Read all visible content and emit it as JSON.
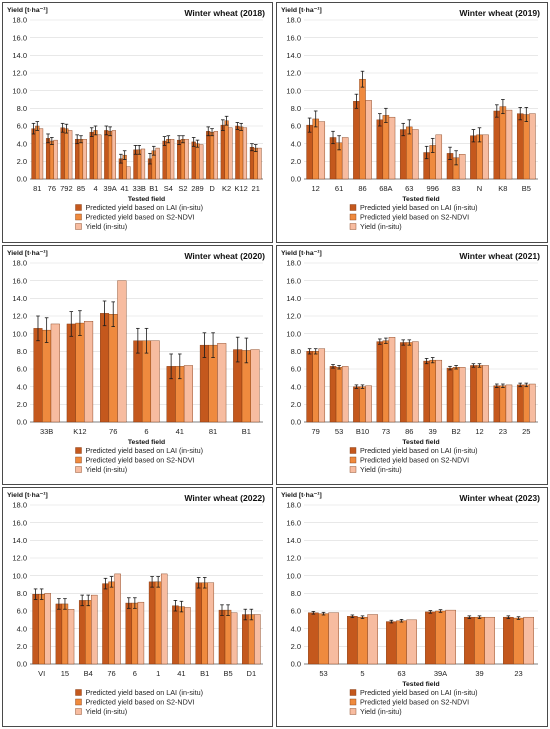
{
  "legend": {
    "lai": "Predicted yield based on LAI (in-situ)",
    "ndvi": "Predicted yield based on S2-NDVI",
    "insitu": "Yield (in-situ)"
  },
  "colors": {
    "lai": "#c4581d",
    "ndvi": "#ef8a3e",
    "insitu": "#f7bca0",
    "bar_stroke": "#7a3510"
  },
  "chart_data": [
    {
      "type": "bar",
      "title": "Winter wheat (2018)",
      "ylabel": "Yield [t·ha⁻¹]",
      "xlabel": "Tested field",
      "ylim": [
        0,
        18
      ],
      "yticks": [
        "0.0",
        "2.0",
        "4.0",
        "6.0",
        "8.0",
        "10.0",
        "12.0",
        "14.0",
        "16.0",
        "18.0"
      ],
      "grid": true,
      "legend_position": "bottom",
      "categories": [
        "81",
        "76",
        "792",
        "85",
        "4",
        "39A",
        "41",
        "33B",
        "B1",
        "S4",
        "S2",
        "289",
        "D",
        "K2",
        "K12",
        "21"
      ],
      "series": [
        {
          "name": "Predicted yield based on LAI (in-situ)",
          "values": [
            5.7,
            4.6,
            5.8,
            4.5,
            5.3,
            5.5,
            2.3,
            3.3,
            2.3,
            4.3,
            4.4,
            4.2,
            5.4,
            6.1,
            6.0,
            3.6
          ],
          "errors": [
            0.6,
            0.5,
            0.5,
            0.5,
            0.5,
            0.5,
            0.5,
            0.5,
            0.6,
            0.5,
            0.5,
            0.5,
            0.5,
            0.6,
            0.4,
            0.4
          ]
        },
        {
          "name": "Predicted yield based on S2-NDVI",
          "values": [
            6.0,
            4.3,
            5.7,
            4.5,
            5.5,
            5.4,
            2.7,
            3.3,
            3.2,
            4.5,
            4.5,
            4.0,
            5.3,
            6.6,
            5.9,
            3.5
          ],
          "errors": [
            0.5,
            0.4,
            0.5,
            0.4,
            0.5,
            0.5,
            0.5,
            0.5,
            0.5,
            0.4,
            0.4,
            0.4,
            0.4,
            0.5,
            0.4,
            0.4
          ]
        },
        {
          "name": "Yield (in-situ)",
          "values": [
            5.7,
            4.4,
            5.5,
            4.5,
            5.0,
            5.5,
            1.4,
            3.4,
            3.5,
            4.5,
            4.5,
            3.9,
            5.4,
            5.8,
            5.8,
            3.5
          ]
        }
      ]
    },
    {
      "type": "bar",
      "title": "Winter wheat (2019)",
      "ylabel": "Yield [t·ha⁻¹]",
      "xlabel": "Tested field",
      "ylim": [
        0,
        18
      ],
      "yticks": [
        "0.0",
        "2.0",
        "4.0",
        "6.0",
        "8.0",
        "10.0",
        "12.0",
        "14.0",
        "16.0",
        "18.0"
      ],
      "grid": true,
      "legend_position": "bottom",
      "categories": [
        "12",
        "61",
        "86",
        "68A",
        "63",
        "996",
        "83",
        "N",
        "K8",
        "B5"
      ],
      "series": [
        {
          "name": "Predicted yield based on LAI (in-situ)",
          "values": [
            6.1,
            4.7,
            8.8,
            6.7,
            5.6,
            3.0,
            2.9,
            4.9,
            7.7,
            7.4
          ],
          "errors": [
            0.8,
            0.7,
            0.8,
            0.7,
            0.7,
            0.7,
            0.7,
            0.7,
            0.7,
            0.7
          ]
        },
        {
          "name": "Predicted yield based on S2-NDVI",
          "values": [
            6.8,
            4.1,
            11.3,
            7.2,
            5.9,
            3.8,
            2.4,
            5.0,
            8.2,
            7.3
          ],
          "errors": [
            0.9,
            0.8,
            0.9,
            0.8,
            0.8,
            0.8,
            0.8,
            0.8,
            0.8,
            0.8
          ]
        },
        {
          "name": "Yield (in-situ)",
          "values": [
            6.5,
            4.7,
            8.9,
            7.0,
            5.6,
            5.0,
            2.8,
            5.0,
            7.8,
            7.4
          ]
        }
      ]
    },
    {
      "type": "bar",
      "title": "Winter wheat (2020)",
      "ylabel": "Yield [t·ha⁻¹]",
      "xlabel": "Tested field",
      "ylim": [
        0,
        18
      ],
      "yticks": [
        "0.0",
        "2.0",
        "4.0",
        "6.0",
        "8.0",
        "10.0",
        "12.0",
        "14.0",
        "16.0",
        "18.0"
      ],
      "grid": true,
      "legend_position": "bottom",
      "categories": [
        "33B",
        "K12",
        "76",
        "6",
        "41",
        "81",
        "B1"
      ],
      "series": [
        {
          "name": "Predicted yield based on LAI (in-situ)",
          "values": [
            10.6,
            11.1,
            12.3,
            9.2,
            6.3,
            8.7,
            8.2
          ],
          "errors": [
            1.4,
            1.4,
            1.4,
            1.4,
            1.4,
            1.4,
            1.4
          ]
        },
        {
          "name": "Predicted yield based on S2-NDVI",
          "values": [
            10.4,
            11.2,
            12.2,
            9.2,
            6.3,
            8.7,
            8.1
          ],
          "errors": [
            1.4,
            1.4,
            1.4,
            1.4,
            1.4,
            1.4,
            1.4
          ]
        },
        {
          "name": "Yield (in-situ)",
          "values": [
            11.1,
            11.4,
            16.0,
            9.2,
            6.4,
            8.9,
            8.2
          ]
        }
      ]
    },
    {
      "type": "bar",
      "title": "Winter wheat (2021)",
      "ylabel": "Yield [t·ha⁻¹]",
      "xlabel": "Tested field",
      "ylim": [
        0,
        18
      ],
      "yticks": [
        "0.0",
        "2.0",
        "4.0",
        "6.0",
        "8.0",
        "10.0",
        "12.0",
        "14.0",
        "16.0",
        "18.0"
      ],
      "grid": true,
      "legend_position": "bottom",
      "categories": [
        "79",
        "53",
        "B10",
        "73",
        "86",
        "39",
        "B2",
        "12",
        "23",
        "25"
      ],
      "series": [
        {
          "name": "Predicted yield based on LAI (in-situ)",
          "values": [
            8.0,
            6.3,
            4.0,
            9.1,
            9.0,
            6.9,
            6.1,
            6.4,
            4.1,
            4.2
          ],
          "errors": [
            0.3,
            0.2,
            0.2,
            0.3,
            0.3,
            0.3,
            0.2,
            0.2,
            0.2,
            0.2
          ]
        },
        {
          "name": "Predicted yield based on S2-NDVI",
          "values": [
            8.0,
            6.2,
            4.0,
            9.2,
            9.0,
            7.0,
            6.2,
            6.4,
            4.1,
            4.2
          ],
          "errors": [
            0.3,
            0.2,
            0.2,
            0.3,
            0.3,
            0.3,
            0.2,
            0.2,
            0.2,
            0.2
          ]
        },
        {
          "name": "Yield (in-situ)",
          "values": [
            8.3,
            6.3,
            4.1,
            9.6,
            9.1,
            7.0,
            6.2,
            6.4,
            4.2,
            4.3
          ]
        }
      ]
    },
    {
      "type": "bar",
      "title": "Winter wheat (2022)",
      "ylabel": "Yield [t·ha⁻¹]",
      "xlabel": "",
      "ylim": [
        0,
        18
      ],
      "yticks": [
        "0.0",
        "2.0",
        "4.0",
        "6.0",
        "8.0",
        "10.0",
        "12.0",
        "14.0",
        "16.0",
        "18.0"
      ],
      "grid": true,
      "legend_position": "bottom",
      "categories": [
        "VI",
        "15",
        "B4",
        "76",
        "6",
        "1",
        "41",
        "B1",
        "B5",
        "D1"
      ],
      "series": [
        {
          "name": "Predicted yield based on LAI (in-situ)",
          "values": [
            7.9,
            6.8,
            7.2,
            9.1,
            6.9,
            9.3,
            6.6,
            9.2,
            6.1,
            5.6
          ],
          "errors": [
            0.6,
            0.6,
            0.6,
            0.6,
            0.6,
            0.6,
            0.6,
            0.6,
            0.6,
            0.6
          ]
        },
        {
          "name": "Predicted yield based on S2-NDVI",
          "values": [
            7.9,
            6.8,
            7.2,
            9.3,
            6.9,
            9.3,
            6.5,
            9.2,
            6.1,
            5.6
          ],
          "errors": [
            0.6,
            0.6,
            0.6,
            0.6,
            0.6,
            0.6,
            0.6,
            0.6,
            0.6,
            0.6
          ]
        },
        {
          "name": "Yield (in-situ)",
          "values": [
            8.0,
            6.2,
            7.8,
            10.2,
            7.0,
            10.2,
            6.4,
            9.2,
            5.8,
            5.6
          ]
        }
      ]
    },
    {
      "type": "bar",
      "title": "Winter wheat (2023)",
      "ylabel": "Yield [t·ha⁻¹]",
      "xlabel": "Tested field",
      "ylim": [
        0,
        18
      ],
      "yticks": [
        "0.0",
        "2.0",
        "4.0",
        "6.0",
        "8.0",
        "10.0",
        "12.0",
        "14.0",
        "16.0",
        "18.0"
      ],
      "grid": true,
      "legend_position": "bottom",
      "categories": [
        "53",
        "5",
        "63",
        "39A",
        "39",
        "23"
      ],
      "series": [
        {
          "name": "Predicted yield based on LAI (in-situ)",
          "values": [
            5.8,
            5.4,
            4.8,
            5.9,
            5.3,
            5.3
          ],
          "errors": [
            0.15,
            0.15,
            0.15,
            0.15,
            0.15,
            0.15
          ]
        },
        {
          "name": "Predicted yield based on S2-NDVI",
          "values": [
            5.7,
            5.3,
            4.9,
            6.0,
            5.3,
            5.2
          ],
          "errors": [
            0.15,
            0.15,
            0.15,
            0.15,
            0.15,
            0.15
          ]
        },
        {
          "name": "Yield (in-situ)",
          "values": [
            5.8,
            5.6,
            5.0,
            6.1,
            5.3,
            5.3
          ]
        }
      ]
    }
  ]
}
